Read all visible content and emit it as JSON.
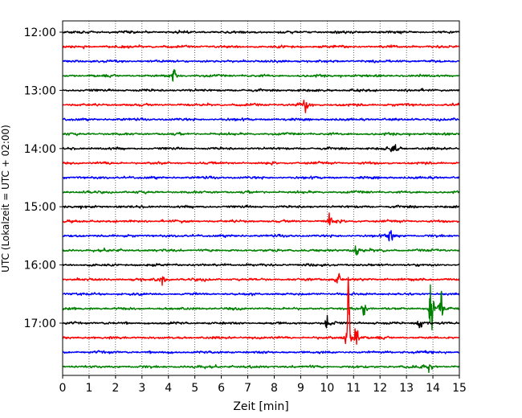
{
  "chart_data": {
    "type": "line",
    "title": "",
    "xlabel": "Zeit  [min]",
    "ylabel": "UTC (Lokalzeit = UTC + 02:00)",
    "xlim": [
      0,
      15
    ],
    "x_ticks": [
      "0",
      "1",
      "2",
      "3",
      "4",
      "5",
      "6",
      "7",
      "8",
      "9",
      "10",
      "11",
      "12",
      "13",
      "14",
      "15"
    ],
    "y_ticks": [
      "12:00",
      "13:00",
      "14:00",
      "15:00",
      "16:00",
      "17:00"
    ],
    "grid": "vertical dotted",
    "trace_interval_min": 15,
    "trace_colors": [
      "#000000",
      "#ff0000",
      "#0000ff",
      "#008000"
    ],
    "traces": [
      {
        "start": "12:00",
        "color": "#000000",
        "events": []
      },
      {
        "start": "12:15",
        "color": "#ff0000",
        "events": []
      },
      {
        "start": "12:30",
        "color": "#0000ff",
        "events": []
      },
      {
        "start": "12:45",
        "color": "#008000",
        "events": [
          {
            "t": 4.2,
            "amp": 1.5
          }
        ]
      },
      {
        "start": "13:00",
        "color": "#000000",
        "events": []
      },
      {
        "start": "13:15",
        "color": "#ff0000",
        "events": [
          {
            "t": 9.2,
            "amp": 1.6
          }
        ]
      },
      {
        "start": "13:30",
        "color": "#0000ff",
        "events": []
      },
      {
        "start": "13:45",
        "color": "#008000",
        "events": []
      },
      {
        "start": "14:00",
        "color": "#000000",
        "events": [
          {
            "t": 12.5,
            "amp": 1.4
          }
        ]
      },
      {
        "start": "14:15",
        "color": "#ff0000",
        "events": []
      },
      {
        "start": "14:30",
        "color": "#0000ff",
        "events": []
      },
      {
        "start": "14:45",
        "color": "#008000",
        "events": []
      },
      {
        "start": "15:00",
        "color": "#000000",
        "events": []
      },
      {
        "start": "15:15",
        "color": "#ff0000",
        "events": [
          {
            "t": 10.1,
            "amp": 1.6
          }
        ]
      },
      {
        "start": "15:30",
        "color": "#0000ff",
        "events": [
          {
            "t": 12.4,
            "amp": 1.5
          }
        ]
      },
      {
        "start": "15:45",
        "color": "#008000",
        "events": [
          {
            "t": 11.1,
            "amp": 1.5
          }
        ]
      },
      {
        "start": "16:00",
        "color": "#000000",
        "events": []
      },
      {
        "start": "16:15",
        "color": "#ff0000",
        "events": [
          {
            "t": 3.8,
            "amp": 1.3
          },
          {
            "t": 10.4,
            "amp": 1.3
          }
        ]
      },
      {
        "start": "16:30",
        "color": "#0000ff",
        "events": []
      },
      {
        "start": "16:45",
        "color": "#008000",
        "events": [
          {
            "t": 11.4,
            "amp": 1.6
          },
          {
            "t": 13.95,
            "amp": 9.0
          },
          {
            "t": 14.3,
            "amp": 4.5
          }
        ]
      },
      {
        "start": "17:00",
        "color": "#000000",
        "events": [
          {
            "t": 10.0,
            "amp": 1.6
          },
          {
            "t": 13.5,
            "amp": 1.3
          }
        ]
      },
      {
        "start": "17:15",
        "color": "#ff0000",
        "events": [
          {
            "t": 10.8,
            "amp": 8.5
          },
          {
            "t": 11.1,
            "amp": 3.0
          }
        ]
      },
      {
        "start": "17:30",
        "color": "#0000ff",
        "events": []
      },
      {
        "start": "17:45",
        "color": "#008000",
        "events": [
          {
            "t": 13.9,
            "amp": 2.0
          }
        ]
      }
    ]
  }
}
